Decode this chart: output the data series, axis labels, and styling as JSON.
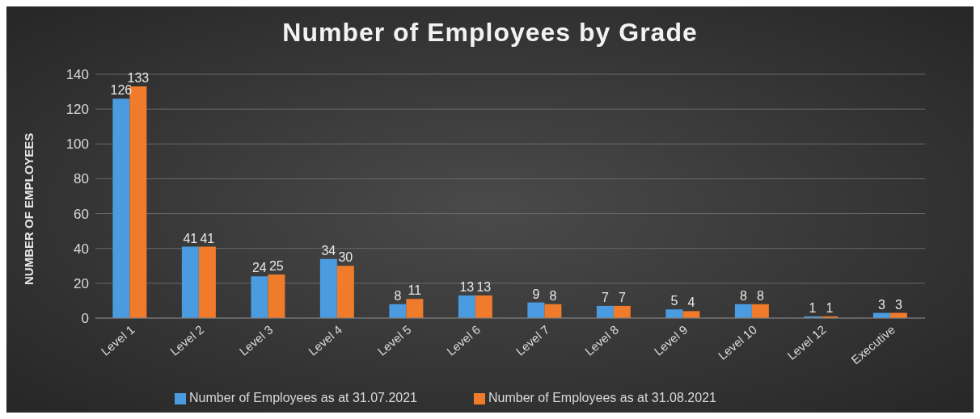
{
  "chart_data": {
    "type": "bar",
    "title": "Number of Employees by Grade",
    "ylabel": "NUMBER OF EMPLOYEES",
    "categories": [
      "Level 1",
      "Level 2",
      "Level 3",
      "Level 4",
      "Level 5",
      "Level 6",
      "Level 7",
      "Level 8",
      "Level 9",
      "Level 10",
      "Level 12",
      "Executive"
    ],
    "series": [
      {
        "name": "Number of Employees as at 31.07.2021",
        "color": "#4a9be0",
        "values": [
          126,
          41,
          24,
          34,
          8,
          13,
          9,
          7,
          5,
          8,
          1,
          3
        ]
      },
      {
        "name": "Number of Employees as at 31.08.2021",
        "color": "#ef7b2b",
        "values": [
          133,
          41,
          25,
          30,
          11,
          13,
          8,
          7,
          4,
          8,
          1,
          3
        ]
      }
    ],
    "ylim": [
      0,
      140
    ],
    "yticks": [
      0,
      20,
      40,
      60,
      80,
      100,
      120,
      140
    ],
    "grid": "y",
    "legend": "bottom",
    "data_labels": true
  }
}
